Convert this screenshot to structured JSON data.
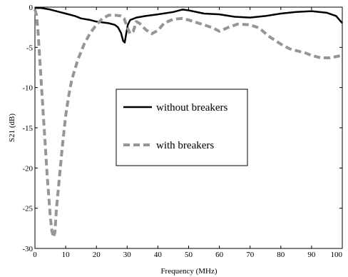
{
  "chart_data": {
    "type": "line",
    "xlabel": "Frequency (MHz)",
    "ylabel": "S21 (dB)",
    "xlim": [
      0,
      100
    ],
    "ylim": [
      -30,
      0
    ],
    "xticks": [
      0,
      10,
      20,
      30,
      40,
      50,
      60,
      70,
      80,
      90,
      100
    ],
    "yticks": [
      0,
      -5,
      -10,
      -15,
      -20,
      -25,
      -30
    ],
    "xtick_labels": [
      "0",
      "10",
      "20",
      "30",
      "40",
      "50",
      "60",
      "70",
      "80",
      "90",
      "100"
    ],
    "ytick_labels": [
      "0",
      "-5",
      "-10",
      "-15",
      "-20",
      "-25",
      "-30"
    ],
    "grid": false,
    "legend_position": "center",
    "series": [
      {
        "name": "without breakers",
        "style": "solid",
        "color": "#000000",
        "x": [
          0,
          2,
          5,
          8,
          10,
          13,
          15,
          18,
          20,
          22,
          24,
          26,
          27,
          28,
          28.7,
          29.2,
          29.6,
          30.2,
          31,
          33,
          36,
          40,
          45,
          48,
          50,
          55,
          60,
          65,
          70,
          75,
          80,
          85,
          90,
          95,
          98,
          100
        ],
        "y": [
          -0.1,
          -0.1,
          -0.3,
          -0.6,
          -0.8,
          -1.1,
          -1.4,
          -1.6,
          -1.8,
          -1.9,
          -2.0,
          -2.2,
          -2.5,
          -3.2,
          -4.2,
          -4.4,
          -3.5,
          -2.2,
          -1.6,
          -1.3,
          -1.1,
          -0.9,
          -0.6,
          -0.3,
          -0.4,
          -0.8,
          -0.9,
          -1.2,
          -1.3,
          -1.1,
          -0.8,
          -0.6,
          -0.5,
          -0.7,
          -1.1,
          -2.0
        ]
      },
      {
        "name": "with breakers",
        "style": "dashed",
        "color": "#969696",
        "x": [
          0,
          0.5,
          1,
          2,
          3,
          4,
          5,
          5.5,
          6,
          6.5,
          7,
          8,
          9,
          10,
          11,
          12,
          14,
          16,
          18,
          20,
          22,
          24,
          26,
          28,
          29,
          30,
          31,
          32,
          33,
          34,
          36,
          38,
          40,
          42,
          45,
          48,
          50,
          55,
          58,
          60,
          63,
          66,
          70,
          73,
          76,
          80,
          83,
          86,
          88,
          90,
          93,
          96,
          100
        ],
        "y": [
          -0.3,
          -1,
          -3,
          -9,
          -15,
          -21,
          -26,
          -27.8,
          -28.6,
          -28,
          -25,
          -21,
          -17,
          -13.5,
          -11,
          -9,
          -6.5,
          -4.6,
          -3.2,
          -2.2,
          -1.4,
          -1.0,
          -1.0,
          -1.1,
          -1.4,
          -2.5,
          -3.3,
          -3.0,
          -1.8,
          -2.0,
          -2.8,
          -3.3,
          -2.9,
          -2.0,
          -1.5,
          -1.4,
          -1.6,
          -2.2,
          -2.6,
          -3.0,
          -2.5,
          -2.1,
          -2.2,
          -2.6,
          -3.6,
          -4.6,
          -5.2,
          -5.5,
          -5.7,
          -6.0,
          -6.3,
          -6.3,
          -6.0
        ]
      }
    ]
  }
}
